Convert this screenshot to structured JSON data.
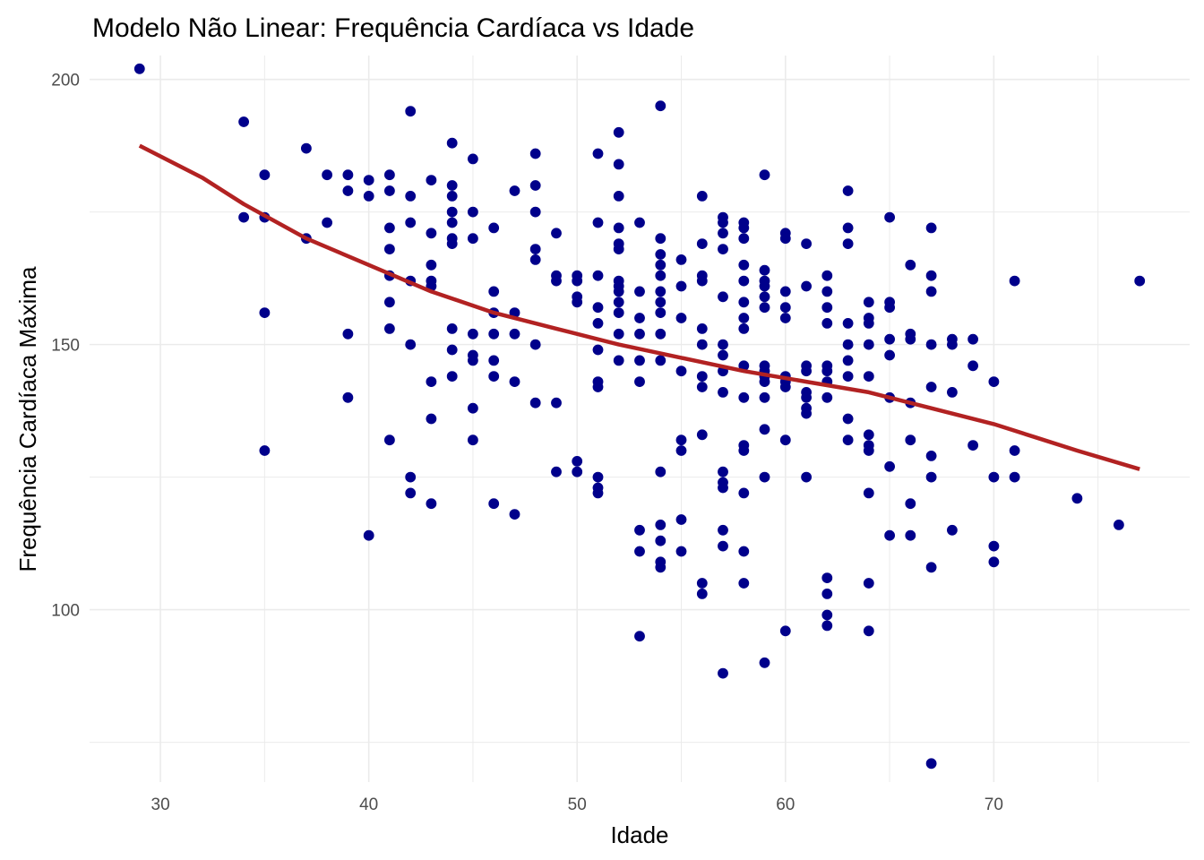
{
  "chart_data": {
    "type": "scatter",
    "title": "Modelo Não Linear: Frequência Cardíaca vs Idade",
    "xlabel": "Idade",
    "ylabel": "Frequência Cardíaca Máxima",
    "xlim": [
      26.6,
      79.4
    ],
    "ylim": [
      67.5,
      204.5
    ],
    "x_ticks": [
      30,
      40,
      50,
      60,
      70
    ],
    "y_ticks": [
      100,
      150,
      200
    ],
    "x_minor_ticks": [
      35,
      45,
      55,
      65,
      75
    ],
    "y_minor_ticks": [
      75,
      125,
      175
    ],
    "grid": true,
    "colors": {
      "points": "#00008b",
      "curve": "#b22222",
      "grid": "#ebebeb",
      "tick_text": "#4d4d4d"
    },
    "points": [
      [
        29,
        202
      ],
      [
        34,
        192
      ],
      [
        34,
        174
      ],
      [
        35,
        182
      ],
      [
        35,
        174
      ],
      [
        35,
        156
      ],
      [
        35,
        130
      ],
      [
        37,
        187
      ],
      [
        37,
        170
      ],
      [
        38,
        182
      ],
      [
        38,
        173
      ],
      [
        39,
        182
      ],
      [
        39,
        179
      ],
      [
        39,
        152
      ],
      [
        39,
        140
      ],
      [
        40,
        181
      ],
      [
        40,
        178
      ],
      [
        40,
        114
      ],
      [
        41,
        182
      ],
      [
        41,
        179
      ],
      [
        41,
        172
      ],
      [
        41,
        168
      ],
      [
        41,
        163
      ],
      [
        41,
        158
      ],
      [
        41,
        153
      ],
      [
        41,
        132
      ],
      [
        42,
        194
      ],
      [
        42,
        178
      ],
      [
        42,
        173
      ],
      [
        42,
        162
      ],
      [
        42,
        150
      ],
      [
        42,
        125
      ],
      [
        42,
        122
      ],
      [
        43,
        181
      ],
      [
        43,
        171
      ],
      [
        43,
        165
      ],
      [
        43,
        162
      ],
      [
        43,
        161
      ],
      [
        43,
        143
      ],
      [
        43,
        136
      ],
      [
        43,
        120
      ],
      [
        44,
        188
      ],
      [
        44,
        180
      ],
      [
        44,
        178
      ],
      [
        44,
        175
      ],
      [
        44,
        173
      ],
      [
        44,
        170
      ],
      [
        44,
        169
      ],
      [
        44,
        153
      ],
      [
        44,
        149
      ],
      [
        44,
        144
      ],
      [
        45,
        185
      ],
      [
        45,
        175
      ],
      [
        45,
        170
      ],
      [
        45,
        152
      ],
      [
        45,
        148
      ],
      [
        45,
        147
      ],
      [
        45,
        138
      ],
      [
        45,
        132
      ],
      [
        46,
        172
      ],
      [
        46,
        160
      ],
      [
        46,
        156
      ],
      [
        46,
        152
      ],
      [
        46,
        147
      ],
      [
        46,
        144
      ],
      [
        46,
        120
      ],
      [
        47,
        179
      ],
      [
        47,
        156
      ],
      [
        47,
        152
      ],
      [
        47,
        143
      ],
      [
        47,
        118
      ],
      [
        48,
        186
      ],
      [
        48,
        180
      ],
      [
        48,
        175
      ],
      [
        48,
        168
      ],
      [
        48,
        166
      ],
      [
        48,
        150
      ],
      [
        48,
        139
      ],
      [
        49,
        171
      ],
      [
        49,
        163
      ],
      [
        49,
        162
      ],
      [
        49,
        139
      ],
      [
        49,
        126
      ],
      [
        50,
        163
      ],
      [
        50,
        162
      ],
      [
        50,
        159
      ],
      [
        50,
        158
      ],
      [
        50,
        128
      ],
      [
        50,
        126
      ],
      [
        51,
        186
      ],
      [
        51,
        173
      ],
      [
        51,
        163
      ],
      [
        51,
        157
      ],
      [
        51,
        154
      ],
      [
        51,
        149
      ],
      [
        51,
        143
      ],
      [
        51,
        142
      ],
      [
        51,
        125
      ],
      [
        51,
        123
      ],
      [
        51,
        122
      ],
      [
        52,
        190
      ],
      [
        52,
        184
      ],
      [
        52,
        178
      ],
      [
        52,
        172
      ],
      [
        52,
        169
      ],
      [
        52,
        168
      ],
      [
        52,
        162
      ],
      [
        52,
        161
      ],
      [
        52,
        160
      ],
      [
        52,
        158
      ],
      [
        52,
        156
      ],
      [
        52,
        152
      ],
      [
        52,
        147
      ],
      [
        53,
        173
      ],
      [
        53,
        160
      ],
      [
        53,
        155
      ],
      [
        53,
        152
      ],
      [
        53,
        147
      ],
      [
        53,
        143
      ],
      [
        53,
        115
      ],
      [
        53,
        111
      ],
      [
        53,
        95
      ],
      [
        54,
        195
      ],
      [
        54,
        170
      ],
      [
        54,
        167
      ],
      [
        54,
        165
      ],
      [
        54,
        163
      ],
      [
        54,
        160
      ],
      [
        54,
        158
      ],
      [
        54,
        156
      ],
      [
        54,
        152
      ],
      [
        54,
        147
      ],
      [
        54,
        126
      ],
      [
        54,
        116
      ],
      [
        54,
        113
      ],
      [
        54,
        109
      ],
      [
        54,
        108
      ],
      [
        55,
        166
      ],
      [
        55,
        161
      ],
      [
        55,
        155
      ],
      [
        55,
        145
      ],
      [
        55,
        132
      ],
      [
        55,
        130
      ],
      [
        55,
        117
      ],
      [
        55,
        111
      ],
      [
        56,
        178
      ],
      [
        56,
        169
      ],
      [
        56,
        163
      ],
      [
        56,
        162
      ],
      [
        56,
        153
      ],
      [
        56,
        150
      ],
      [
        56,
        144
      ],
      [
        56,
        142
      ],
      [
        56,
        133
      ],
      [
        56,
        105
      ],
      [
        56,
        103
      ],
      [
        57,
        174
      ],
      [
        57,
        173
      ],
      [
        57,
        171
      ],
      [
        57,
        168
      ],
      [
        57,
        159
      ],
      [
        57,
        150
      ],
      [
        57,
        148
      ],
      [
        57,
        145
      ],
      [
        57,
        141
      ],
      [
        57,
        126
      ],
      [
        57,
        124
      ],
      [
        57,
        123
      ],
      [
        57,
        115
      ],
      [
        57,
        112
      ],
      [
        57,
        88
      ],
      [
        58,
        173
      ],
      [
        58,
        172
      ],
      [
        58,
        170
      ],
      [
        58,
        165
      ],
      [
        58,
        162
      ],
      [
        58,
        158
      ],
      [
        58,
        155
      ],
      [
        58,
        153
      ],
      [
        58,
        146
      ],
      [
        58,
        140
      ],
      [
        58,
        131
      ],
      [
        58,
        130
      ],
      [
        58,
        122
      ],
      [
        58,
        111
      ],
      [
        58,
        105
      ],
      [
        59,
        182
      ],
      [
        59,
        164
      ],
      [
        59,
        162
      ],
      [
        59,
        161
      ],
      [
        59,
        159
      ],
      [
        59,
        157
      ],
      [
        59,
        146
      ],
      [
        59,
        145
      ],
      [
        59,
        144
      ],
      [
        59,
        143
      ],
      [
        59,
        140
      ],
      [
        59,
        134
      ],
      [
        59,
        125
      ],
      [
        59,
        90
      ],
      [
        60,
        171
      ],
      [
        60,
        170
      ],
      [
        60,
        160
      ],
      [
        60,
        157
      ],
      [
        60,
        155
      ],
      [
        60,
        144
      ],
      [
        60,
        143
      ],
      [
        60,
        142
      ],
      [
        60,
        132
      ],
      [
        60,
        96
      ],
      [
        61,
        169
      ],
      [
        61,
        161
      ],
      [
        61,
        146
      ],
      [
        61,
        145
      ],
      [
        61,
        141
      ],
      [
        61,
        140
      ],
      [
        61,
        138
      ],
      [
        61,
        137
      ],
      [
        61,
        125
      ],
      [
        62,
        163
      ],
      [
        62,
        160
      ],
      [
        62,
        157
      ],
      [
        62,
        154
      ],
      [
        62,
        146
      ],
      [
        62,
        145
      ],
      [
        62,
        143
      ],
      [
        62,
        140
      ],
      [
        62,
        106
      ],
      [
        62,
        103
      ],
      [
        62,
        99
      ],
      [
        62,
        97
      ],
      [
        63,
        179
      ],
      [
        63,
        172
      ],
      [
        63,
        169
      ],
      [
        63,
        154
      ],
      [
        63,
        150
      ],
      [
        63,
        147
      ],
      [
        63,
        144
      ],
      [
        63,
        136
      ],
      [
        63,
        132
      ],
      [
        64,
        158
      ],
      [
        64,
        155
      ],
      [
        64,
        154
      ],
      [
        64,
        150
      ],
      [
        64,
        144
      ],
      [
        64,
        133
      ],
      [
        64,
        131
      ],
      [
        64,
        130
      ],
      [
        64,
        122
      ],
      [
        64,
        105
      ],
      [
        64,
        96
      ],
      [
        65,
        174
      ],
      [
        65,
        158
      ],
      [
        65,
        157
      ],
      [
        65,
        151
      ],
      [
        65,
        148
      ],
      [
        65,
        140
      ],
      [
        65,
        127
      ],
      [
        65,
        114
      ],
      [
        66,
        165
      ],
      [
        66,
        152
      ],
      [
        66,
        151
      ],
      [
        66,
        139
      ],
      [
        66,
        132
      ],
      [
        66,
        120
      ],
      [
        66,
        114
      ],
      [
        67,
        172
      ],
      [
        67,
        163
      ],
      [
        67,
        160
      ],
      [
        67,
        150
      ],
      [
        67,
        142
      ],
      [
        67,
        129
      ],
      [
        67,
        125
      ],
      [
        67,
        108
      ],
      [
        67,
        71
      ],
      [
        68,
        151
      ],
      [
        68,
        150
      ],
      [
        68,
        141
      ],
      [
        68,
        115
      ],
      [
        69,
        151
      ],
      [
        69,
        146
      ],
      [
        69,
        131
      ],
      [
        70,
        143
      ],
      [
        70,
        125
      ],
      [
        70,
        112
      ],
      [
        70,
        109
      ],
      [
        71,
        162
      ],
      [
        71,
        130
      ],
      [
        71,
        125
      ],
      [
        74,
        121
      ],
      [
        76,
        116
      ],
      [
        77,
        162
      ]
    ],
    "curve": [
      [
        29,
        187.5
      ],
      [
        32,
        181.5
      ],
      [
        34,
        176.5
      ],
      [
        37,
        170
      ],
      [
        40,
        165
      ],
      [
        43,
        160
      ],
      [
        46,
        156
      ],
      [
        49,
        153
      ],
      [
        52,
        150
      ],
      [
        55,
        147.5
      ],
      [
        58,
        145
      ],
      [
        61,
        143
      ],
      [
        64,
        141
      ],
      [
        67,
        138
      ],
      [
        70,
        135
      ],
      [
        72,
        132.5
      ],
      [
        74,
        130
      ],
      [
        77,
        126.5
      ]
    ]
  }
}
